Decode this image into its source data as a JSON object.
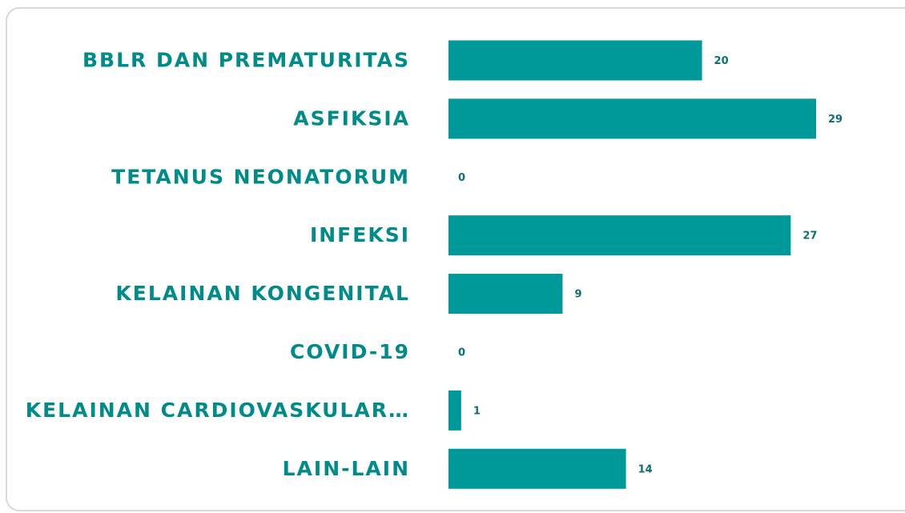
{
  "chart_data": {
    "type": "bar",
    "orientation": "horizontal",
    "categories": [
      "BBLR DAN PREMATURITAS",
      "ASFIKSIA",
      "TETANUS NEONATORUM",
      "INFEKSI",
      "KELAINAN KONGENITAL",
      "COVID-19",
      "KELAINAN CARDIOVASKULAR…",
      "LAIN-LAIN"
    ],
    "values": [
      20,
      29,
      0,
      27,
      9,
      0,
      1,
      14
    ],
    "color": "#009999",
    "label_color": "#008b8b",
    "value_label_color": "#0e6f6f"
  }
}
